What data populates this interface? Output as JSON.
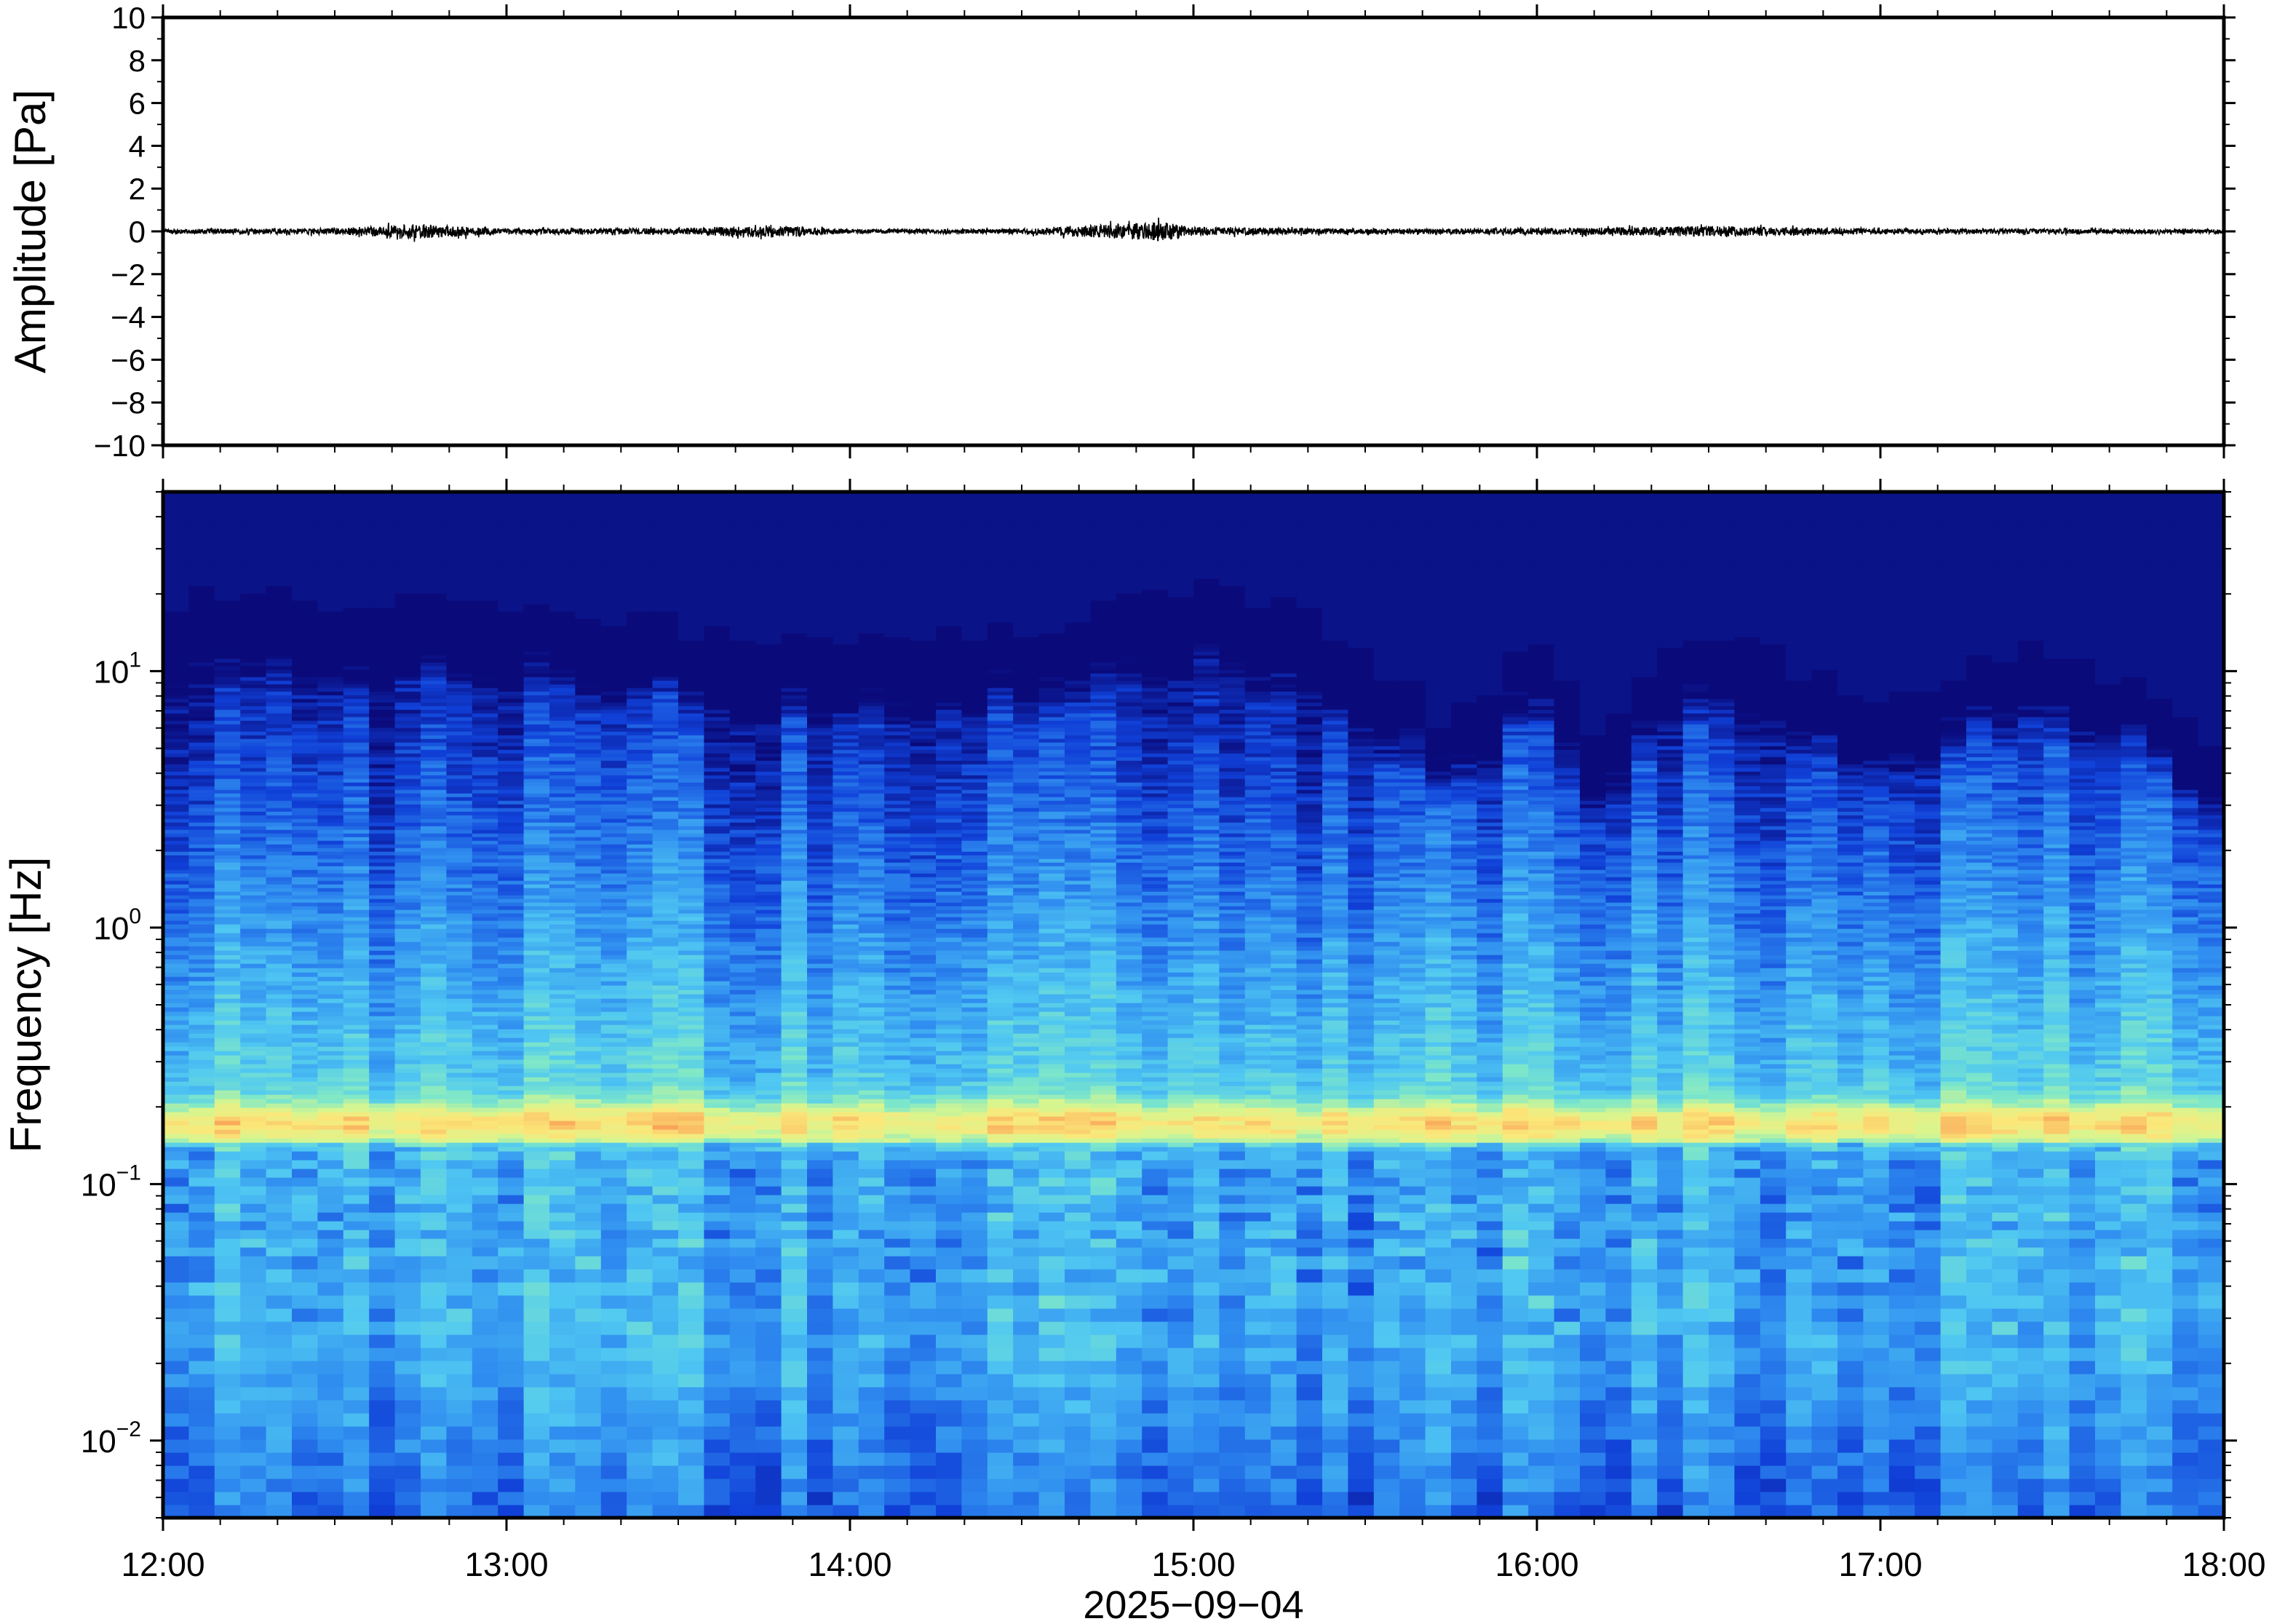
{
  "chart_data": [
    {
      "type": "line",
      "panel": "waveform",
      "ylabel": "Amplitude [Pa]",
      "ylim": [
        -10,
        10
      ],
      "yticks": [
        10,
        8,
        6,
        4,
        2,
        0,
        -2,
        -4,
        -6,
        -8,
        -10
      ],
      "ytick_labels": [
        "10",
        "8",
        "6",
        "4",
        "2",
        "0",
        "−2",
        "−4",
        "−6",
        "−8",
        "−10"
      ],
      "xlim": [
        "12:00",
        "18:00"
      ],
      "series": [
        {
          "x": [
            "12:00",
            "12:30",
            "12:45",
            "13:00",
            "13:30",
            "13:45",
            "14:00",
            "14:30",
            "14:55",
            "15:00",
            "15:30",
            "16:00",
            "16:20",
            "16:30",
            "17:00",
            "17:30",
            "18:00"
          ],
          "y": [
            0.1,
            0.15,
            0.35,
            0.12,
            0.15,
            0.3,
            0.1,
            0.12,
            0.45,
            0.2,
            0.12,
            0.15,
            0.2,
            0.25,
            0.12,
            0.12,
            0.1
          ]
        }
      ],
      "color": "#000000"
    },
    {
      "type": "heatmap",
      "panel": "spectrogram",
      "ylabel": "Frequency [Hz]",
      "yscale": "log",
      "ylim": [
        0.005,
        50
      ],
      "yticks": [
        0.01,
        0.1,
        1,
        10
      ],
      "ytick_labels": [
        {
          "base": "10",
          "exp": "−2"
        },
        {
          "base": "10",
          "exp": "−1"
        },
        {
          "base": "10",
          "exp": "0"
        },
        {
          "base": "10",
          "exp": "1"
        }
      ],
      "xlim": [
        "12:00",
        "18:00"
      ],
      "xtick_labels": [
        "12:00",
        "13:00",
        "14:00",
        "15:00",
        "16:00",
        "17:00",
        "18:00"
      ],
      "xlabel": "2025−09−04",
      "colormap": "jet",
      "colormap_stops": [
        "#0a0a7a",
        "#1040d8",
        "#2f8cf0",
        "#4fc7f2",
        "#7fe8c8",
        "#d6f690",
        "#fbe87a",
        "#f9a85a",
        "#ef5a3a"
      ],
      "band_center_hz": 0.17,
      "upper_cutoff_hz": [
        {
          "time": "12:00",
          "hz": 22
        },
        {
          "time": "13:00",
          "hz": 22
        },
        {
          "time": "13:45",
          "hz": 15
        },
        {
          "time": "14:30",
          "hz": 16
        },
        {
          "time": "14:55",
          "hz": 25
        },
        {
          "time": "15:20",
          "hz": 20
        },
        {
          "time": "15:45",
          "hz": 7
        },
        {
          "time": "16:00",
          "hz": 16
        },
        {
          "time": "16:10",
          "hz": 7
        },
        {
          "time": "16:30",
          "hz": 16
        },
        {
          "time": "17:00",
          "hz": 9
        },
        {
          "time": "17:30",
          "hz": 14
        },
        {
          "time": "18:00",
          "hz": 6
        }
      ]
    }
  ]
}
